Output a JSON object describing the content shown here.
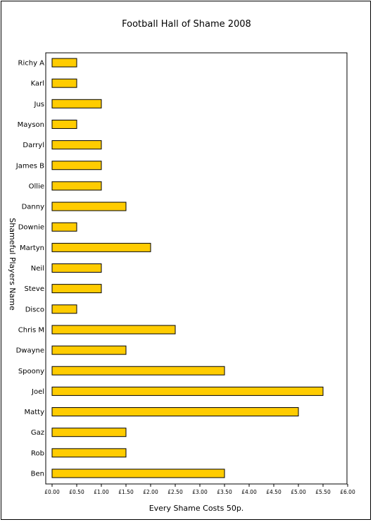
{
  "chart_data": {
    "type": "bar",
    "orientation": "horizontal",
    "title": "Football Hall of Shame 2008",
    "xlabel": "Every Shame Costs 50p.",
    "ylabel": "Shameful Players Name",
    "categories": [
      "Richy A",
      "Karl",
      "Jus",
      "Mayson",
      "Darryl",
      "James B",
      "Ollie",
      "Danny",
      "Downie",
      "Martyn",
      "Neil",
      "Steve",
      "Disco",
      "Chris M",
      "Dwayne",
      "Spoony",
      "Joel",
      "Matty",
      "Gaz",
      "Rob",
      "Ben"
    ],
    "values": [
      0.5,
      0.5,
      1.0,
      0.5,
      1.0,
      1.0,
      1.0,
      1.5,
      0.5,
      2.0,
      1.0,
      1.0,
      0.5,
      2.5,
      1.5,
      3.5,
      5.5,
      5.0,
      1.5,
      1.5,
      3.5
    ],
    "xlim": [
      0,
      6
    ],
    "xticks": [
      0,
      0.5,
      1,
      1.5,
      2,
      2.5,
      3,
      3.5,
      4,
      4.5,
      5,
      5.5,
      6
    ],
    "xtick_labels": [
      "£0.00",
      "£0.50",
      "£1.00",
      "£1.50",
      "£2.00",
      "£2.50",
      "£3.00",
      "£3.50",
      "£4.00",
      "£4.50",
      "£5.00",
      "£5.50",
      "£6.00"
    ],
    "bar_color": "#FFCC00",
    "grid": false,
    "legend": false
  }
}
